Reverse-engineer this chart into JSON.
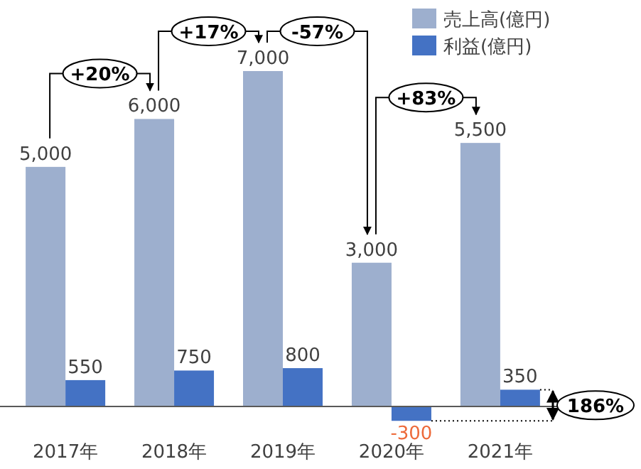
{
  "chart_data": {
    "type": "bar",
    "categories": [
      "2017年",
      "2018年",
      "2019年",
      "2020年",
      "2021年"
    ],
    "series": [
      {
        "name": "売上高(億円)",
        "color": "#9dafce",
        "values": [
          5000,
          6000,
          7000,
          3000,
          5500
        ],
        "value_labels": [
          "5,000",
          "6,000",
          "7,000",
          "3,000",
          "5,500"
        ]
      },
      {
        "name": "利益(億円)",
        "color": "#4472c4",
        "values": [
          550,
          750,
          800,
          -300,
          350
        ],
        "value_labels": [
          "550",
          "750",
          "800",
          "-300",
          "350"
        ]
      }
    ],
    "legend": "top right",
    "annotations": [
      "+20%",
      "+17%",
      "-57%",
      "+83%",
      "186%"
    ]
  }
}
